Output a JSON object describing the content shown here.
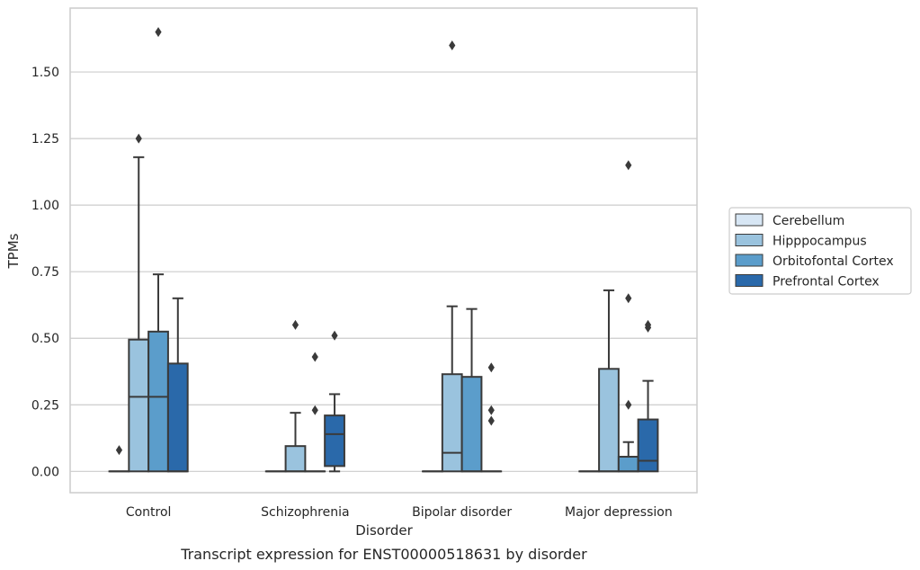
{
  "chart_data": {
    "type": "box",
    "title": "",
    "caption": "Transcript expression for ENST00000518631 by disorder",
    "xlabel": "Disorder",
    "ylabel": "TPMs",
    "ylim": [
      -0.08,
      1.74
    ],
    "yticks": [
      "0.00",
      "0.25",
      "0.50",
      "0.75",
      "1.00",
      "1.25",
      "1.50"
    ],
    "ytick_values": [
      0,
      0.25,
      0.5,
      0.75,
      1.0,
      1.25,
      1.5
    ],
    "grid": "horizontal",
    "legend_position": "right",
    "categories": [
      "Control",
      "Schizophrenia",
      "Bipolar disorder",
      "Major depression"
    ],
    "series": [
      {
        "name": "Cerebellum",
        "color": "#d7e6f4",
        "boxes": [
          {
            "q1": 0,
            "median": 0,
            "q3": 0,
            "whisker_low": 0,
            "whisker_high": 0,
            "outliers": [
              0.08
            ]
          },
          {
            "q1": 0,
            "median": 0,
            "q3": 0,
            "whisker_low": 0,
            "whisker_high": 0,
            "outliers": []
          },
          {
            "q1": 0,
            "median": 0,
            "q3": 0,
            "whisker_low": 0,
            "whisker_high": 0,
            "outliers": []
          },
          {
            "q1": 0,
            "median": 0,
            "q3": 0,
            "whisker_low": 0,
            "whisker_high": 0,
            "outliers": []
          }
        ]
      },
      {
        "name": "Hipppocampus",
        "color": "#9ac3de",
        "boxes": [
          {
            "q1": 0,
            "median": 0.28,
            "q3": 0.495,
            "whisker_low": 0,
            "whisker_high": 1.18,
            "outliers": [
              1.25
            ]
          },
          {
            "q1": 0,
            "median": 0,
            "q3": 0.095,
            "whisker_low": 0,
            "whisker_high": 0.22,
            "outliers": [
              0.55
            ]
          },
          {
            "q1": 0,
            "median": 0.07,
            "q3": 0.365,
            "whisker_low": 0,
            "whisker_high": 0.62,
            "outliers": [
              1.6
            ]
          },
          {
            "q1": 0,
            "median": 0,
            "q3": 0.385,
            "whisker_low": 0,
            "whisker_high": 0.68,
            "outliers": []
          }
        ]
      },
      {
        "name": "Orbitofontal Cortex",
        "color": "#5b9dcb",
        "boxes": [
          {
            "q1": 0,
            "median": 0.28,
            "q3": 0.525,
            "whisker_low": 0,
            "whisker_high": 0.74,
            "outliers": [
              1.65
            ]
          },
          {
            "q1": 0,
            "median": 0,
            "q3": 0,
            "whisker_low": 0,
            "whisker_high": 0,
            "outliers": [
              0.23,
              0.43
            ]
          },
          {
            "q1": 0,
            "median": 0,
            "q3": 0.355,
            "whisker_low": 0,
            "whisker_high": 0.61,
            "outliers": []
          },
          {
            "q1": 0,
            "median": 0,
            "q3": 0.055,
            "whisker_low": 0,
            "whisker_high": 0.11,
            "outliers": [
              0.25,
              0.65,
              1.15
            ]
          }
        ]
      },
      {
        "name": "Prefrontal Cortex",
        "color": "#2a69aa",
        "boxes": [
          {
            "q1": 0,
            "median": 0,
            "q3": 0.405,
            "whisker_low": 0,
            "whisker_high": 0.65,
            "outliers": []
          },
          {
            "q1": 0.02,
            "median": 0.14,
            "q3": 0.21,
            "whisker_low": 0,
            "whisker_high": 0.29,
            "outliers": [
              0.51
            ]
          },
          {
            "q1": 0,
            "median": 0,
            "q3": 0,
            "whisker_low": 0,
            "whisker_high": 0,
            "outliers": [
              0.19,
              0.23,
              0.39
            ]
          },
          {
            "q1": 0,
            "median": 0.04,
            "q3": 0.195,
            "whisker_low": 0,
            "whisker_high": 0.34,
            "outliers": [
              0.54,
              0.55
            ]
          }
        ]
      }
    ]
  }
}
